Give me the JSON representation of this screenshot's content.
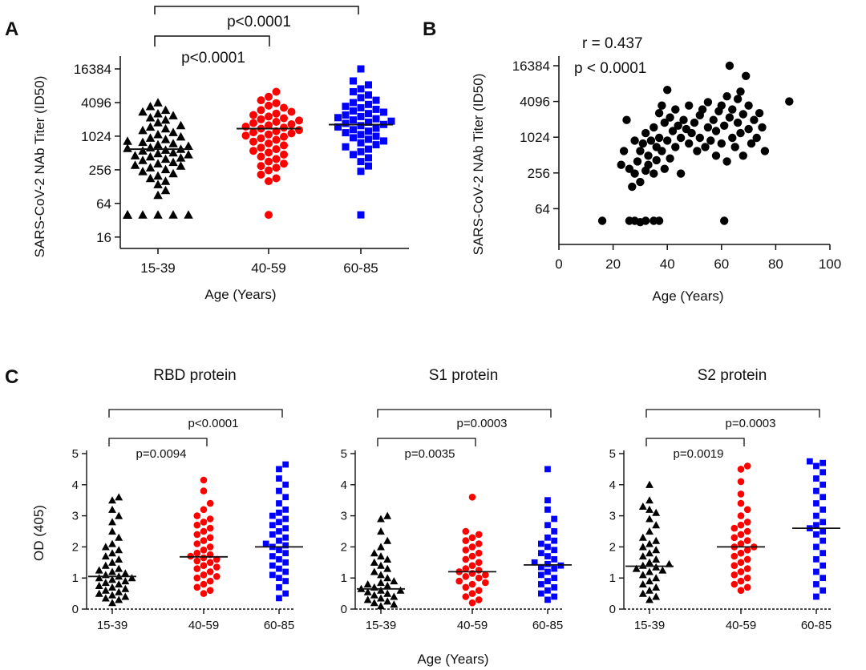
{
  "panels": {
    "A": {
      "letter": "A",
      "type": "scatter",
      "ylabel": "SARS-CoV-2 NAb Titer (ID50)",
      "xlabel": "Age (Years)",
      "y_scale": "log2",
      "y_ticks": [
        "16384",
        "4096",
        "1024",
        "256",
        "64",
        "16"
      ],
      "groups": [
        {
          "label": "15-39",
          "marker": "triangle",
          "color": "#000000",
          "median": 600
        },
        {
          "label": "40-59",
          "marker": "circle",
          "color": "#ff0000",
          "median": 1400
        },
        {
          "label": "60-85",
          "marker": "square",
          "color": "#0000ff",
          "median": 1650
        }
      ],
      "comparisons": [
        {
          "from": "15-39",
          "to": "40-59",
          "label": "p<0.0001"
        },
        {
          "from": "15-39",
          "to": "60-85",
          "label": "p<0.0001"
        }
      ]
    },
    "B": {
      "letter": "B",
      "type": "scatter",
      "ylabel": "SARS-CoV-2 NAb Titer (ID50)",
      "xlabel": "Age (Years)",
      "y_scale": "log2",
      "y_ticks": [
        "16384",
        "4096",
        "1024",
        "256",
        "64"
      ],
      "x_ticks": [
        "0",
        "20",
        "40",
        "60",
        "80",
        "100"
      ],
      "xlim": [
        0,
        100
      ],
      "r_text": "r = 0.437",
      "p_text": "p < 0.0001",
      "color": "#000000"
    },
    "C": {
      "letter": "C",
      "ylabel": "OD (405)",
      "xlabel": "Age (Years)",
      "y_ticks": [
        "5",
        "4",
        "3",
        "2",
        "1",
        "0"
      ],
      "ylim": [
        0,
        5
      ],
      "subpanels": [
        {
          "title": "RBD protein",
          "groups": [
            {
              "label": "15-39",
              "marker": "triangle",
              "color": "#000000",
              "median": 1.05
            },
            {
              "label": "40-59",
              "marker": "circle",
              "color": "#ff0000",
              "median": 1.68
            },
            {
              "label": "60-85",
              "marker": "square",
              "color": "#0000ff",
              "median": 2.0
            }
          ],
          "comparisons": [
            {
              "from": "15-39",
              "to": "40-59",
              "label": "p=0.0094"
            },
            {
              "from": "15-39",
              "to": "60-85",
              "label": "p<0.0001"
            }
          ]
        },
        {
          "title": "S1 protein",
          "groups": [
            {
              "label": "15-39",
              "marker": "triangle",
              "color": "#000000",
              "median": 0.65
            },
            {
              "label": "40-59",
              "marker": "circle",
              "color": "#ff0000",
              "median": 1.2
            },
            {
              "label": "60-85",
              "marker": "square",
              "color": "#0000ff",
              "median": 1.42
            }
          ],
          "comparisons": [
            {
              "from": "15-39",
              "to": "40-59",
              "label": "p=0.0035"
            },
            {
              "from": "15-39",
              "to": "60-85",
              "label": "p=0.0003"
            }
          ]
        },
        {
          "title": "S2 protein",
          "groups": [
            {
              "label": "15-39",
              "marker": "triangle",
              "color": "#000000",
              "median": 1.38
            },
            {
              "label": "40-59",
              "marker": "circle",
              "color": "#ff0000",
              "median": 2.0
            },
            {
              "label": "60-85",
              "marker": "square",
              "color": "#0000ff",
              "median": 2.6
            }
          ],
          "comparisons": [
            {
              "from": "15-39",
              "to": "40-59",
              "label": "p=0.0019"
            },
            {
              "from": "15-39",
              "to": "60-85",
              "label": "p=0.0003"
            }
          ]
        }
      ]
    }
  },
  "chart_data": [
    {
      "type": "scatter",
      "title": "",
      "xlabel": "Age (Years)",
      "ylabel": "SARS-CoV-2 NAb Titer (ID50)",
      "y_scale": "log2",
      "ylim": [
        10,
        20000
      ],
      "categories": [
        "15-39",
        "40-59",
        "60-85"
      ],
      "series": [
        {
          "name": "15-39",
          "median": 600,
          "values": [
            40,
            40,
            40,
            40,
            40,
            40,
            40,
            40,
            40,
            90,
            110,
            140,
            160,
            180,
            200,
            220,
            240,
            260,
            280,
            300,
            310,
            330,
            350,
            380,
            400,
            420,
            440,
            460,
            480,
            500,
            520,
            560,
            580,
            600,
            620,
            640,
            680,
            720,
            760,
            800,
            840,
            900,
            950,
            1000,
            1100,
            1200,
            1300,
            1400,
            1500,
            1600,
            1800,
            2000,
            2200,
            2400,
            2600,
            2800,
            3000,
            3500,
            4096
          ]
        },
        {
          "name": "40-59",
          "median": 1400,
          "values": [
            40,
            160,
            180,
            210,
            250,
            280,
            300,
            330,
            360,
            400,
            440,
            480,
            520,
            560,
            600,
            640,
            700,
            760,
            820,
            880,
            940,
            1000,
            1050,
            1100,
            1150,
            1200,
            1260,
            1320,
            1400,
            1460,
            1520,
            1600,
            1680,
            1760,
            1850,
            1950,
            2050,
            2150,
            2300,
            2450,
            2600,
            2800,
            3000,
            3300,
            3600,
            4000,
            4500,
            5200,
            6400
          ]
        },
        {
          "name": "60-85",
          "median": 1650,
          "values": [
            40,
            240,
            300,
            360,
            420,
            480,
            540,
            600,
            660,
            720,
            780,
            840,
            900,
            960,
            1020,
            1100,
            1180,
            1260,
            1340,
            1420,
            1500,
            1580,
            1660,
            1740,
            1820,
            1900,
            2000,
            2100,
            2200,
            2300,
            2450,
            2600,
            2750,
            2900,
            3100,
            3300,
            3500,
            3800,
            4100,
            4500,
            5000,
            5600,
            6400,
            7200,
            8500,
            10000,
            16384
          ]
        }
      ]
    },
    {
      "type": "scatter",
      "title": "",
      "xlabel": "Age (Years)",
      "ylabel": "SARS-CoV-2 NAb Titer (ID50)",
      "y_scale": "log2",
      "xlim": [
        0,
        100
      ],
      "annotations": [
        "r = 0.437",
        "p < 0.0001"
      ],
      "points": [
        [
          16,
          40
        ],
        [
          26,
          40
        ],
        [
          28,
          40
        ],
        [
          30,
          38
        ],
        [
          32,
          40
        ],
        [
          35,
          40
        ],
        [
          37,
          40
        ],
        [
          61,
          40
        ],
        [
          23,
          350
        ],
        [
          24,
          600
        ],
        [
          25,
          2000
        ],
        [
          26,
          300
        ],
        [
          27,
          150
        ],
        [
          28,
          250
        ],
        [
          28,
          900
        ],
        [
          29,
          400
        ],
        [
          30,
          600
        ],
        [
          30,
          180
        ],
        [
          31,
          800
        ],
        [
          32,
          280
        ],
        [
          32,
          1200
        ],
        [
          33,
          500
        ],
        [
          33,
          350
        ],
        [
          34,
          900
        ],
        [
          35,
          250
        ],
        [
          35,
          1500
        ],
        [
          36,
          700
        ],
        [
          36,
          420
        ],
        [
          37,
          2600
        ],
        [
          37,
          1000
        ],
        [
          38,
          3500
        ],
        [
          38,
          600
        ],
        [
          39,
          300
        ],
        [
          39,
          1800
        ],
        [
          40,
          6400
        ],
        [
          40,
          900
        ],
        [
          41,
          2200
        ],
        [
          41,
          450
        ],
        [
          42,
          1300
        ],
        [
          43,
          700
        ],
        [
          43,
          3000
        ],
        [
          44,
          1600
        ],
        [
          45,
          1000
        ],
        [
          45,
          250
        ],
        [
          46,
          2000
        ],
        [
          47,
          1400
        ],
        [
          48,
          3500
        ],
        [
          48,
          800
        ],
        [
          49,
          1200
        ],
        [
          50,
          1800
        ],
        [
          51,
          600
        ],
        [
          52,
          2400
        ],
        [
          52,
          1000
        ],
        [
          53,
          3000
        ],
        [
          54,
          700
        ],
        [
          55,
          1500
        ],
        [
          55,
          4000
        ],
        [
          56,
          900
        ],
        [
          57,
          2000
        ],
        [
          58,
          500
        ],
        [
          58,
          1300
        ],
        [
          59,
          2800
        ],
        [
          60,
          3500
        ],
        [
          60,
          800
        ],
        [
          61,
          1600
        ],
        [
          62,
          5000
        ],
        [
          62,
          400
        ],
        [
          63,
          2200
        ],
        [
          63,
          16384
        ],
        [
          64,
          1000
        ],
        [
          64,
          3000
        ],
        [
          65,
          700
        ],
        [
          66,
          1800
        ],
        [
          66,
          4500
        ],
        [
          67,
          6000
        ],
        [
          67,
          1200
        ],
        [
          68,
          2500
        ],
        [
          68,
          500
        ],
        [
          69,
          11000
        ],
        [
          70,
          1400
        ],
        [
          70,
          3500
        ],
        [
          71,
          800
        ],
        [
          72,
          2000
        ],
        [
          73,
          1000
        ],
        [
          74,
          2600
        ],
        [
          75,
          1500
        ],
        [
          76,
          600
        ],
        [
          85,
          4096
        ]
      ]
    },
    {
      "type": "scatter",
      "title": "RBD protein",
      "xlabel": "Age (Years)",
      "ylabel": "OD (405)",
      "ylim": [
        0,
        5
      ],
      "categories": [
        "15-39",
        "40-59",
        "60-85"
      ],
      "series": [
        {
          "name": "15-39",
          "median": 1.05,
          "values": [
            0.2,
            0.3,
            0.35,
            0.4,
            0.45,
            0.5,
            0.55,
            0.6,
            0.65,
            0.7,
            0.75,
            0.8,
            0.85,
            0.9,
            0.95,
            1.0,
            1.0,
            1.05,
            1.1,
            1.15,
            1.2,
            1.25,
            1.3,
            1.4,
            1.5,
            1.6,
            1.7,
            1.8,
            1.9,
            2.0,
            2.1,
            2.3,
            2.5,
            2.8,
            3.0,
            3.2,
            3.5,
            3.6
          ]
        },
        {
          "name": "40-59",
          "median": 1.68,
          "values": [
            0.5,
            0.6,
            0.7,
            0.8,
            0.9,
            1.0,
            1.05,
            1.1,
            1.2,
            1.3,
            1.35,
            1.4,
            1.5,
            1.55,
            1.6,
            1.65,
            1.7,
            1.75,
            1.8,
            1.9,
            2.0,
            2.1,
            2.2,
            2.3,
            2.4,
            2.5,
            2.6,
            2.7,
            2.8,
            2.9,
            3.0,
            3.2,
            3.4,
            3.8,
            4.15
          ]
        },
        {
          "name": "60-85",
          "median": 2.0,
          "values": [
            0.35,
            0.5,
            0.7,
            0.9,
            1.0,
            1.1,
            1.2,
            1.3,
            1.4,
            1.5,
            1.6,
            1.7,
            1.8,
            1.9,
            2.0,
            2.05,
            2.1,
            2.2,
            2.3,
            2.4,
            2.5,
            2.6,
            2.7,
            2.8,
            2.9,
            3.0,
            3.1,
            3.2,
            3.4,
            3.6,
            3.8,
            4.0,
            4.2,
            4.5,
            4.65
          ]
        }
      ]
    },
    {
      "type": "scatter",
      "title": "S1 protein",
      "xlabel": "Age (Years)",
      "ylabel": "OD (405)",
      "ylim": [
        0,
        5
      ],
      "categories": [
        "15-39",
        "40-59",
        "60-85"
      ],
      "series": [
        {
          "name": "15-39",
          "median": 0.65,
          "values": [
            0.1,
            0.15,
            0.2,
            0.25,
            0.3,
            0.35,
            0.4,
            0.45,
            0.5,
            0.55,
            0.6,
            0.6,
            0.65,
            0.7,
            0.75,
            0.8,
            0.85,
            0.9,
            1.0,
            1.1,
            1.2,
            1.3,
            1.4,
            1.5,
            1.6,
            1.7,
            1.8,
            2.0,
            2.2,
            2.5,
            2.9,
            3.0
          ]
        },
        {
          "name": "40-59",
          "median": 1.2,
          "values": [
            0.2,
            0.3,
            0.4,
            0.5,
            0.6,
            0.7,
            0.8,
            0.85,
            0.9,
            1.0,
            1.05,
            1.1,
            1.15,
            1.2,
            1.25,
            1.3,
            1.4,
            1.5,
            1.6,
            1.7,
            1.8,
            1.9,
            2.0,
            2.1,
            2.2,
            2.3,
            2.4,
            2.5,
            3.6
          ]
        },
        {
          "name": "60-85",
          "median": 1.42,
          "values": [
            0.3,
            0.4,
            0.5,
            0.6,
            0.7,
            0.8,
            0.9,
            1.0,
            1.1,
            1.2,
            1.3,
            1.35,
            1.4,
            1.45,
            1.5,
            1.6,
            1.7,
            1.8,
            1.9,
            2.0,
            2.1,
            2.2,
            2.3,
            2.5,
            2.7,
            2.9,
            3.2,
            3.5,
            4.5
          ]
        }
      ]
    },
    {
      "type": "scatter",
      "title": "S2 protein",
      "xlabel": "Age (Years)",
      "ylabel": "OD (405)",
      "ylim": [
        0,
        5
      ],
      "categories": [
        "15-39",
        "40-59",
        "60-85"
      ],
      "series": [
        {
          "name": "15-39",
          "median": 1.38,
          "values": [
            0.3,
            0.4,
            0.5,
            0.6,
            0.7,
            0.8,
            0.9,
            1.0,
            1.1,
            1.2,
            1.25,
            1.3,
            1.35,
            1.4,
            1.45,
            1.5,
            1.6,
            1.7,
            1.8,
            1.9,
            2.0,
            2.1,
            2.2,
            2.3,
            2.5,
            2.7,
            2.9,
            3.1,
            3.2,
            3.3,
            3.5,
            4.0
          ]
        },
        {
          "name": "40-59",
          "median": 2.0,
          "values": [
            0.6,
            0.7,
            0.8,
            0.9,
            1.0,
            1.1,
            1.2,
            1.3,
            1.4,
            1.5,
            1.6,
            1.7,
            1.8,
            1.9,
            2.0,
            2.0,
            2.1,
            2.2,
            2.3,
            2.4,
            2.5,
            2.6,
            2.7,
            2.8,
            3.0,
            3.2,
            3.4,
            3.7,
            4.1,
            4.5,
            4.6
          ]
        },
        {
          "name": "60-85",
          "median": 2.6,
          "values": [
            0.4,
            0.6,
            0.8,
            1.0,
            1.2,
            1.4,
            1.6,
            1.8,
            2.0,
            2.2,
            2.4,
            2.5,
            2.6,
            2.7,
            2.8,
            3.0,
            3.2,
            3.4,
            3.6,
            3.8,
            4.0,
            4.2,
            4.4,
            4.6,
            4.7,
            4.75
          ]
        }
      ]
    }
  ]
}
